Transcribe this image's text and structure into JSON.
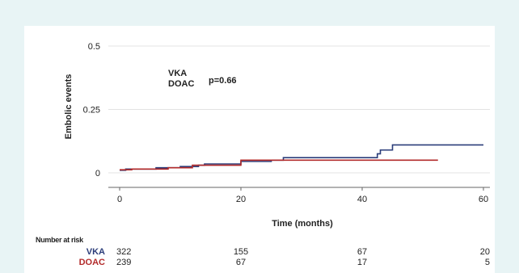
{
  "chart_data": {
    "type": "line",
    "title": "",
    "xlabel": "Time (months)",
    "ylabel": "Embolic events",
    "xlim": [
      0,
      60
    ],
    "ylim": [
      0,
      0.5
    ],
    "x_ticks": [
      0,
      20,
      40,
      60
    ],
    "y_ticks": [
      {
        "value": 0,
        "label": "0"
      },
      {
        "value": 0.25,
        "label": "0.25"
      },
      {
        "value": 0.5,
        "label": "0.5"
      }
    ],
    "grid": "horizontal",
    "legend_placement": "top-left",
    "annotation": "p=0.66",
    "series": [
      {
        "name": "VKA",
        "color": "#2b3d7a",
        "step_points": [
          [
            0,
            0.01
          ],
          [
            1,
            0.015
          ],
          [
            6,
            0.02
          ],
          [
            10,
            0.025
          ],
          [
            13,
            0.03
          ],
          [
            14,
            0.035
          ],
          [
            17,
            0.035
          ],
          [
            20,
            0.045
          ],
          [
            25,
            0.05
          ],
          [
            27,
            0.06
          ],
          [
            42,
            0.06
          ],
          [
            42.5,
            0.075
          ],
          [
            43,
            0.09
          ],
          [
            45,
            0.11
          ],
          [
            60,
            0.11
          ]
        ]
      },
      {
        "name": "DOAC",
        "color": "#b22a2a",
        "step_points": [
          [
            0,
            0.012
          ],
          [
            2,
            0.015
          ],
          [
            8,
            0.02
          ],
          [
            12,
            0.03
          ],
          [
            20,
            0.05
          ],
          [
            26,
            0.05
          ],
          [
            28,
            0.05
          ],
          [
            52.5,
            0.05
          ]
        ]
      }
    ],
    "risk_table": {
      "title": "Number at risk",
      "time_points": [
        0,
        20,
        40,
        60
      ],
      "rows": [
        {
          "name": "VKA",
          "color": "#2b3d7a",
          "values": [
            "322",
            "155",
            "67",
            "20"
          ]
        },
        {
          "name": "DOAC",
          "color": "#b22a2a",
          "values": [
            "239",
            "67",
            "17",
            "5"
          ]
        }
      ]
    }
  }
}
